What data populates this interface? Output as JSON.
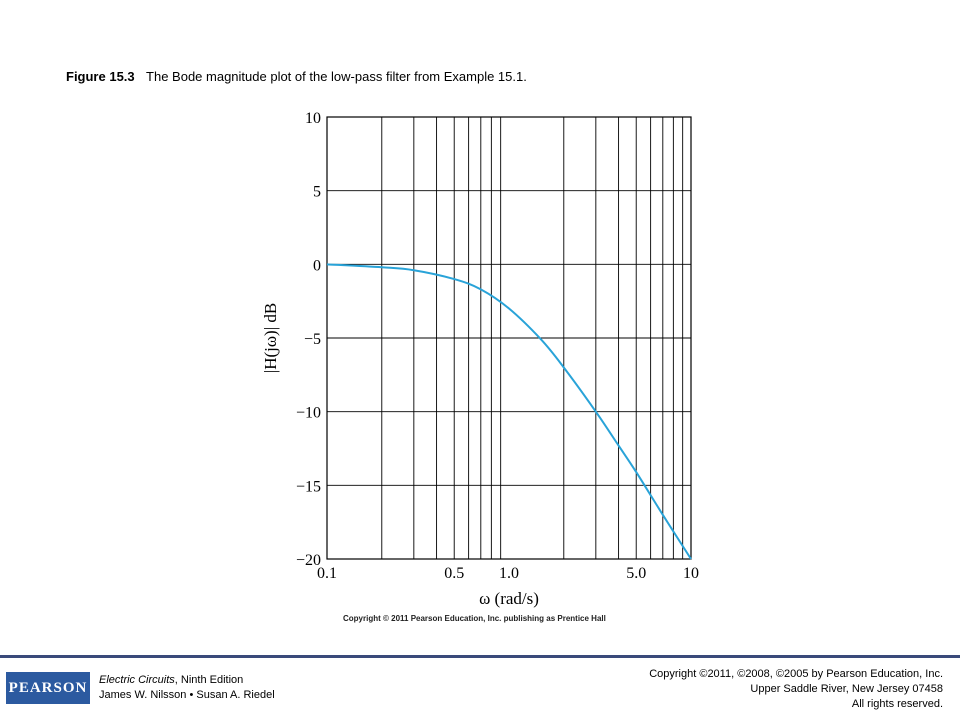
{
  "caption": {
    "figure": "Figure 15.3",
    "text": "The Bode magnitude plot of the low-pass filter from Example 15.1."
  },
  "chart_data": {
    "type": "line",
    "title": "",
    "xlabel": "ω (rad/s)",
    "ylabel": "|H(jω)| dB",
    "xscale": "log",
    "xlim": [
      0.1,
      10
    ],
    "ylim": [
      -20,
      10
    ],
    "grid": true,
    "x_tick_labels": [
      "0.1",
      "0.5",
      "1.0",
      "5.0",
      "10"
    ],
    "x_tick_values": [
      0.1,
      0.5,
      1.0,
      5.0,
      10
    ],
    "y_tick_labels": [
      "10",
      "5",
      "0",
      "−5",
      "−10",
      "−15",
      "−20"
    ],
    "y_tick_values": [
      10,
      5,
      0,
      -5,
      -10,
      -15,
      -20
    ],
    "line_color": "#29a3d8",
    "series": [
      {
        "x": [
          0.1,
          0.2,
          0.3,
          0.5,
          0.7,
          1.0,
          1.5,
          2.0,
          3.0,
          4.0,
          5.0,
          7.0,
          10
        ],
        "values": [
          0.0,
          -0.2,
          -0.4,
          -1.0,
          -1.7,
          -3.0,
          -5.1,
          -7.0,
          -10.0,
          -12.3,
          -14.1,
          -17.0,
          -20.0
        ]
      }
    ]
  },
  "copyright_small": "Copyright © 2011 Pearson Education, Inc. publishing as Prentice Hall",
  "footer": {
    "logo": "PEARSON",
    "book_title": "Electric Circuits",
    "edition": ", Ninth Edition",
    "authors": "James W. Nilsson • Susan A. Riedel",
    "rights_line1": "Copyright ©2011, ©2008, ©2005 by Pearson Education, Inc.",
    "rights_line2": "Upper Saddle River, New Jersey 07458",
    "rights_line3": "All rights reserved."
  }
}
